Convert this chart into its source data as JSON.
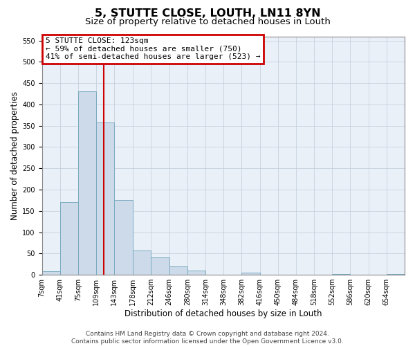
{
  "title": "5, STUTTE CLOSE, LOUTH, LN11 8YN",
  "subtitle": "Size of property relative to detached houses in Louth",
  "xlabel": "Distribution of detached houses by size in Louth",
  "ylabel": "Number of detached properties",
  "bar_color": "#ccdaea",
  "bar_edge_color": "#7aaabf",
  "grid_color": "#c0ccd8",
  "bg_color": "#eaf0f8",
  "vline_color": "#cc0000",
  "vline_x": 123,
  "ann_box_edgecolor": "#cc0000",
  "annotation_line1": "5 STUTTE CLOSE: 123sqm",
  "annotation_line2": "← 59% of detached houses are smaller (750)",
  "annotation_line3": "41% of semi-detached houses are larger (523) →",
  "footer1": "Contains HM Land Registry data © Crown copyright and database right 2024.",
  "footer2": "Contains public sector information licensed under the Open Government Licence v3.0.",
  "bin_edges": [
    7,
    41,
    75,
    109,
    143,
    178,
    212,
    246,
    280,
    314,
    348,
    382,
    416,
    450,
    484,
    518,
    552,
    586,
    620,
    654,
    688
  ],
  "bar_heights": [
    8,
    170,
    430,
    357,
    175,
    57,
    40,
    20,
    10,
    0,
    0,
    5,
    0,
    0,
    0,
    0,
    1,
    0,
    0,
    1
  ],
  "ylim": [
    0,
    560
  ],
  "yticks": [
    0,
    50,
    100,
    150,
    200,
    250,
    300,
    350,
    400,
    450,
    500,
    550
  ],
  "title_fontsize": 11.5,
  "subtitle_fontsize": 9.5,
  "axis_label_fontsize": 8.5,
  "tick_fontsize": 7,
  "ann_fontsize": 8,
  "footer_fontsize": 6.5
}
